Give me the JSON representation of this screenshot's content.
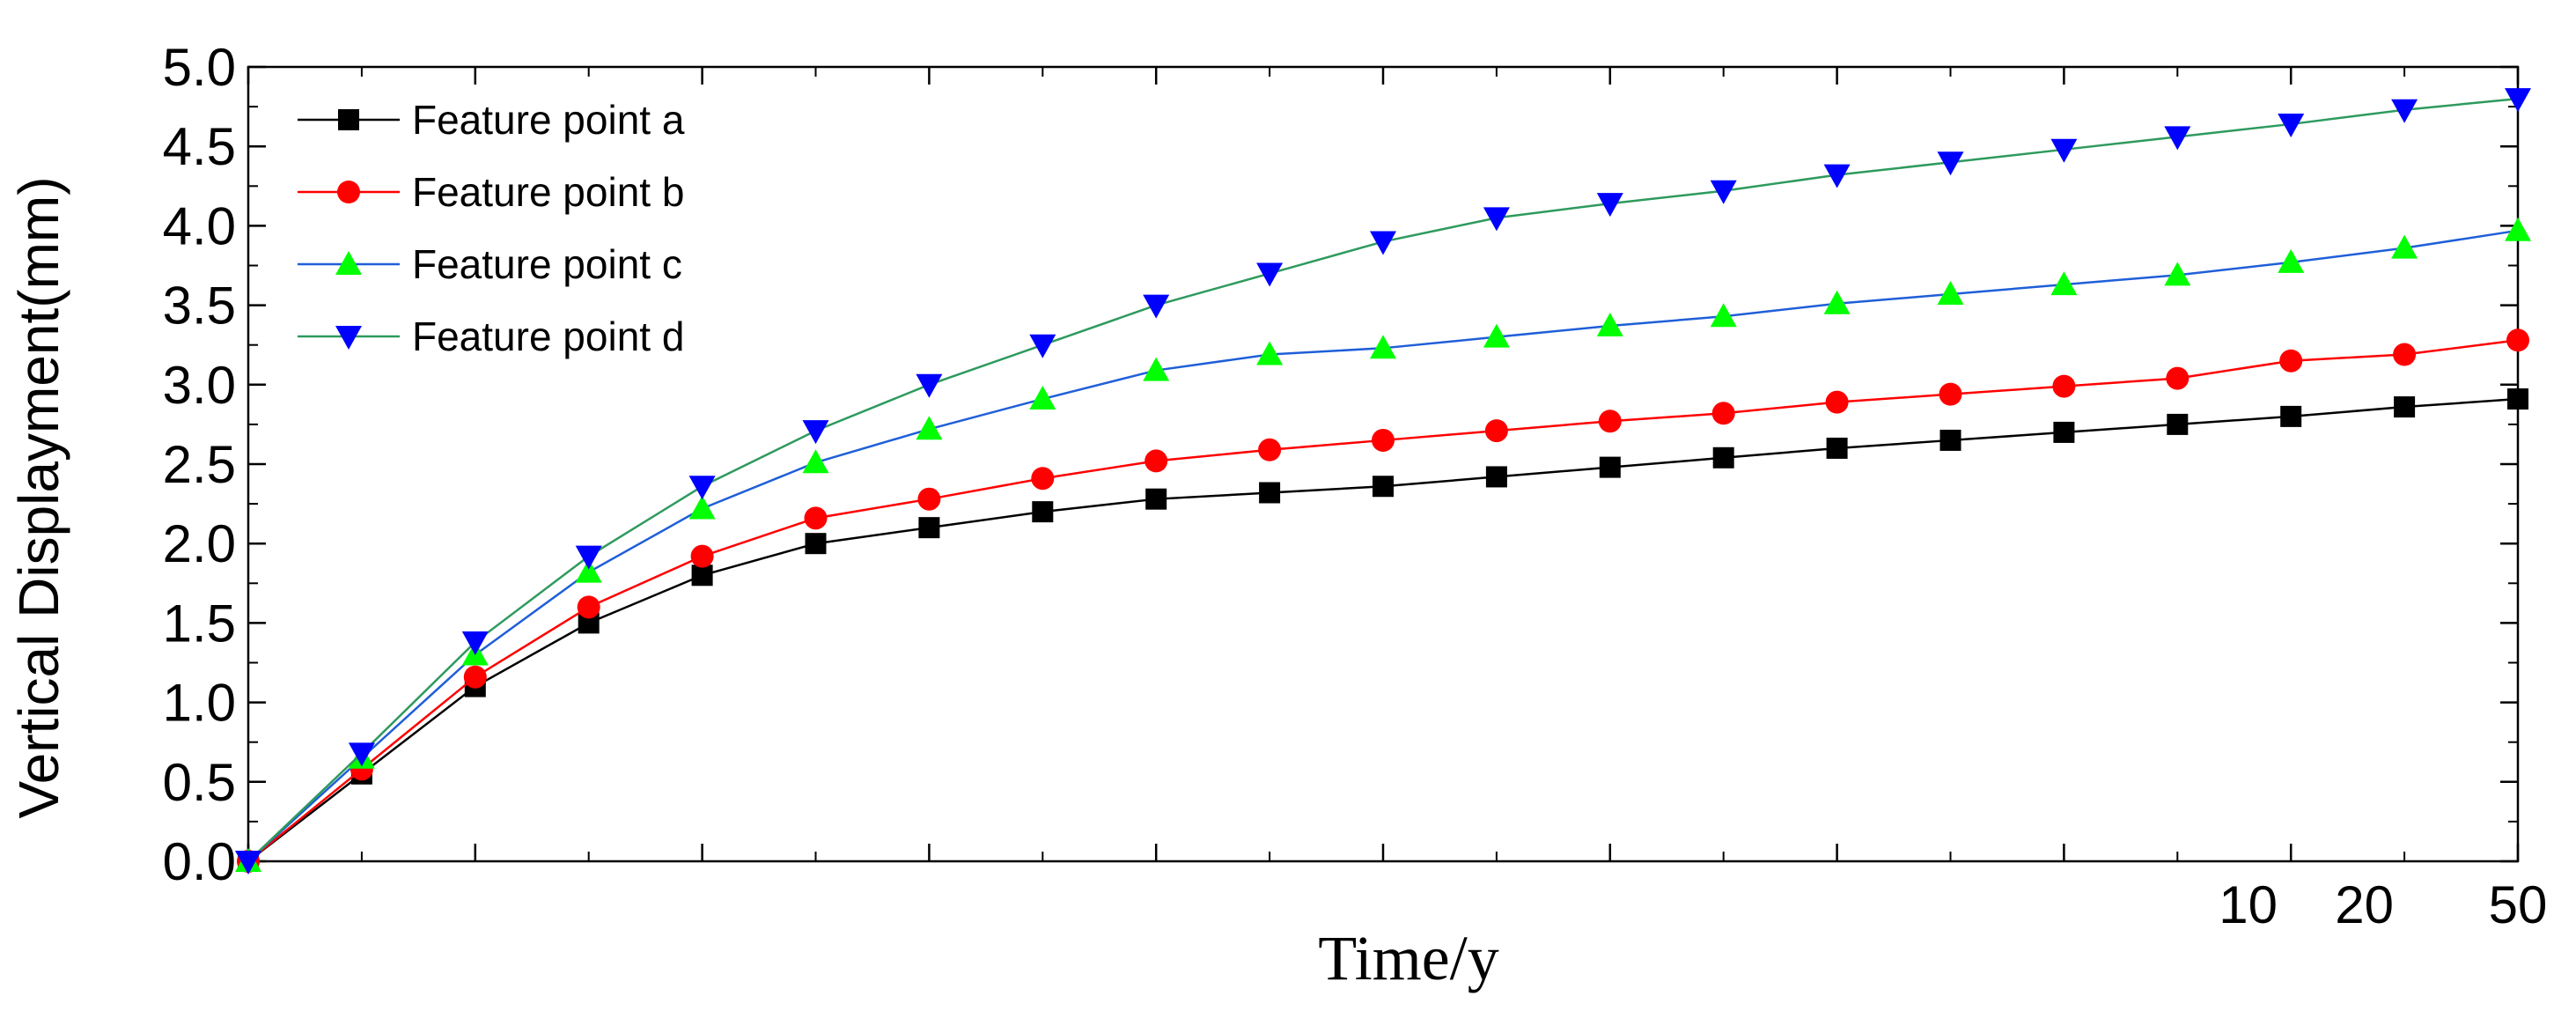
{
  "chart_data": {
    "type": "line",
    "title": "",
    "xlabel": "Time/y",
    "ylabel": "Vertical Displayment(mm)",
    "ylim": [
      0,
      5
    ],
    "y_ticks": [
      "0.0",
      "0.5",
      "1.0",
      "1.5",
      "2.0",
      "2.5",
      "3.0",
      "3.5",
      "4.0",
      "4.5",
      "5.0"
    ],
    "x_tick_labels": [
      {
        "value": 10,
        "label": "10"
      },
      {
        "value": 20,
        "label": "20"
      },
      {
        "value": 50,
        "label": "50"
      }
    ],
    "x": [
      0,
      1,
      2,
      3,
      4,
      5,
      6,
      7,
      8,
      9,
      10,
      11,
      12,
      13,
      14,
      15,
      16,
      17,
      18,
      19,
      20
    ],
    "grid": false,
    "legend_position": "top-left",
    "series": [
      {
        "name": "Feature point a",
        "color": "#000000",
        "line_color": "#000000",
        "marker": "square",
        "values": [
          0,
          0.55,
          1.1,
          1.5,
          1.8,
          2.0,
          2.1,
          2.2,
          2.28,
          2.32,
          2.36,
          2.42,
          2.48,
          2.54,
          2.6,
          2.65,
          2.7,
          2.75,
          2.8,
          2.86,
          2.91
        ]
      },
      {
        "name": "Feature point b",
        "color": "#ff0000",
        "line_color": "#ff0000",
        "marker": "circle",
        "values": [
          0,
          0.58,
          1.16,
          1.6,
          1.92,
          2.16,
          2.28,
          2.41,
          2.52,
          2.59,
          2.65,
          2.71,
          2.77,
          2.82,
          2.89,
          2.94,
          2.99,
          3.04,
          3.15,
          3.19,
          3.28
        ]
      },
      {
        "name": "Feature point c",
        "color": "#00ff00",
        "line_color": "#1f5fd8",
        "marker": "triangle-up",
        "values": [
          0,
          0.65,
          1.3,
          1.82,
          2.22,
          2.51,
          2.72,
          2.91,
          3.09,
          3.19,
          3.23,
          3.3,
          3.37,
          3.43,
          3.51,
          3.57,
          3.63,
          3.69,
          3.77,
          3.86,
          3.97
        ]
      },
      {
        "name": "Feature point d",
        "color": "#0000ff",
        "line_color": "#2e9a5e",
        "marker": "triangle-down",
        "values": [
          0,
          0.68,
          1.38,
          1.92,
          2.36,
          2.71,
          3.0,
          3.25,
          3.5,
          3.7,
          3.9,
          4.05,
          4.14,
          4.22,
          4.32,
          4.4,
          4.48,
          4.56,
          4.64,
          4.73,
          4.8
        ]
      }
    ]
  }
}
